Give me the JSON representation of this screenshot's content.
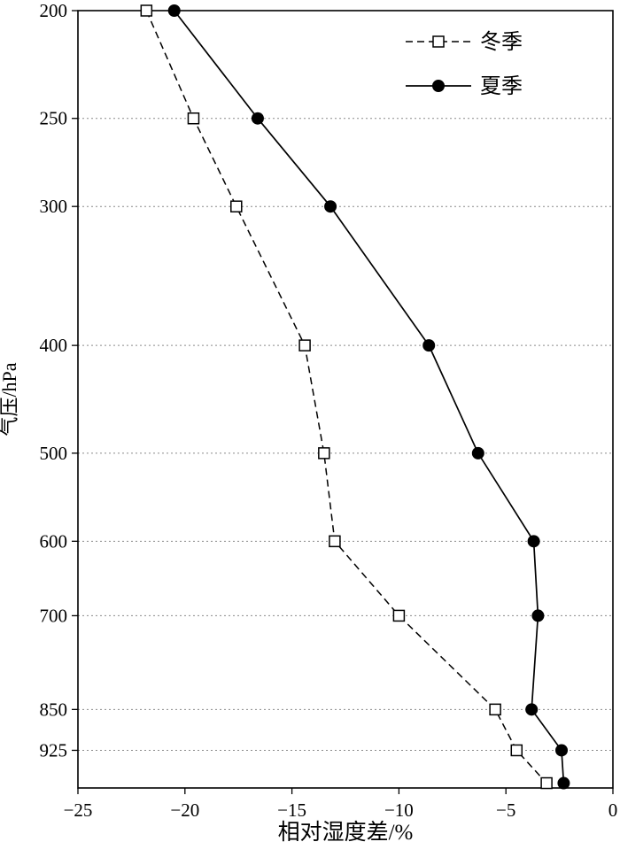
{
  "chart_data": {
    "type": "line",
    "title": "",
    "xlabel": "相对湿度差/%",
    "ylabel": "气压/hPa",
    "xlim": [
      -25,
      0
    ],
    "xticks": [
      -25,
      -20,
      -15,
      -10,
      -5,
      0
    ],
    "y_scale": "log",
    "ylim": [
      200,
      1000
    ],
    "yticks": [
      200,
      250,
      300,
      400,
      500,
      600,
      700,
      850,
      925
    ],
    "grid": "horizontal-dotted",
    "legend_position": "top-right",
    "series": [
      {
        "name": "冬季",
        "style": "dashed",
        "marker": "open-square",
        "pressure": [
          200,
          250,
          300,
          400,
          500,
          600,
          700,
          850,
          925,
          990
        ],
        "values": [
          -21.8,
          -19.6,
          -17.6,
          -14.4,
          -13.5,
          -13.0,
          -10.0,
          -5.5,
          -4.5,
          -3.1
        ]
      },
      {
        "name": "夏季",
        "style": "solid",
        "marker": "filled-circle",
        "pressure": [
          200,
          250,
          300,
          400,
          500,
          600,
          700,
          850,
          925,
          990
        ],
        "values": [
          -20.5,
          -16.6,
          -13.2,
          -8.6,
          -6.3,
          -3.7,
          -3.5,
          -3.8,
          -2.4,
          -2.3
        ]
      }
    ]
  }
}
